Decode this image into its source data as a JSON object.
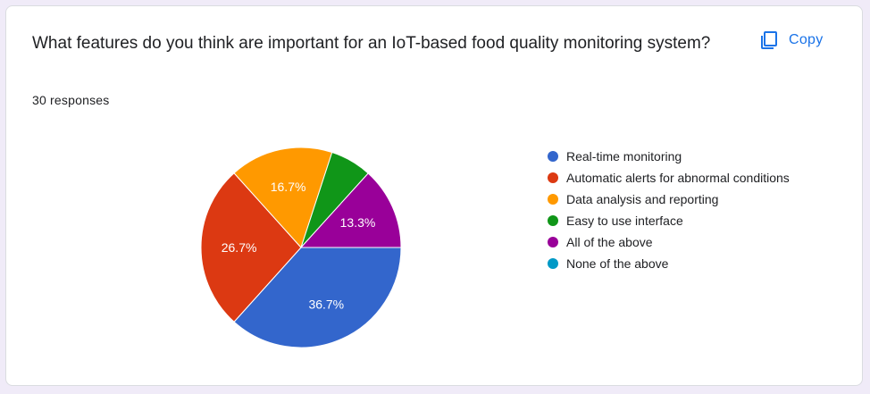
{
  "question": "What features do you think are important for an IoT-based food quality monitoring system?",
  "response_count": "30 responses",
  "copy_button": {
    "label": "Copy",
    "icon": "copy-icon"
  },
  "colors": {
    "accent": "#1a73e8",
    "background": "#f0ebf8"
  },
  "chart_data": {
    "type": "pie",
    "total_responses": 30,
    "legend_position": "right",
    "slices": [
      {
        "label": "Real-time monitoring",
        "percent": 36.7,
        "display": "36.7%",
        "color": "#3366cc"
      },
      {
        "label": "Automatic alerts for abnormal conditions",
        "percent": 26.7,
        "display": "26.7%",
        "color": "#dc3912"
      },
      {
        "label": "Data analysis and reporting",
        "percent": 16.7,
        "display": "16.7%",
        "color": "#ff9900"
      },
      {
        "label": "Easy to use interface",
        "percent": 6.7,
        "display": "",
        "color": "#109618"
      },
      {
        "label": "All of the above",
        "percent": 13.3,
        "display": "13.3%",
        "color": "#990099"
      },
      {
        "label": "None of the above",
        "percent": 0,
        "display": "",
        "color": "#0099c6"
      }
    ]
  }
}
